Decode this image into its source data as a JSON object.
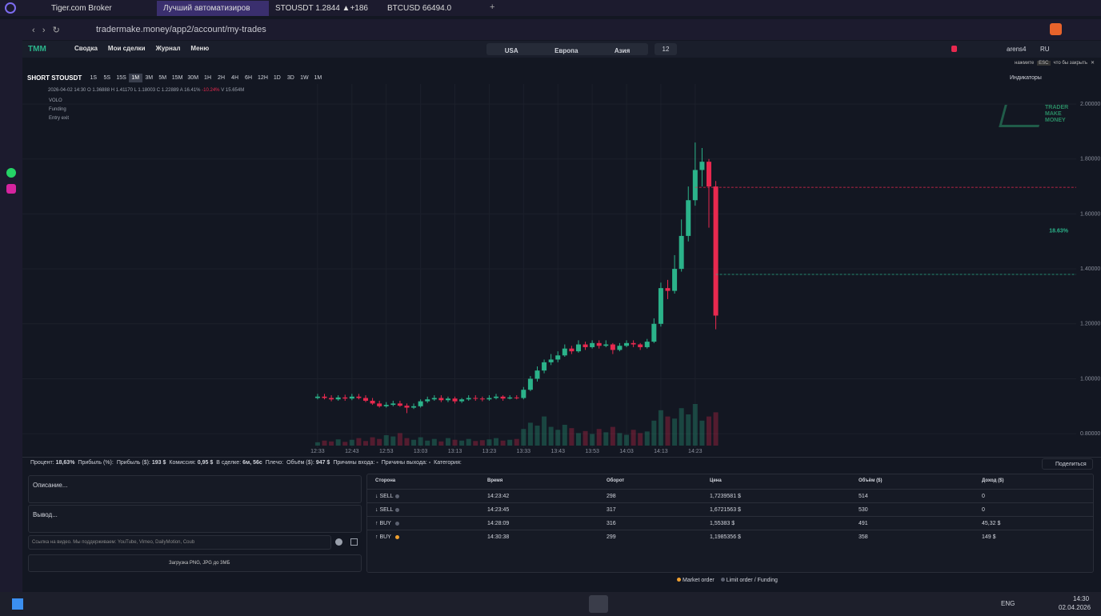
{
  "browser": {
    "tabs": [
      "Tiger.com Broker",
      "Лучший автоматизиров",
      "STOUSDT 1.2844 ▲+186",
      "BTCUSD 66494.0"
    ],
    "url": "tradermake.money/app2/account/my-trades"
  },
  "nav": {
    "items": [
      "Сводка",
      "Мои сделки",
      "Журнал",
      "Меню"
    ],
    "markets": [
      "USA",
      "Европа",
      "Азия"
    ],
    "badge": "12",
    "user": "arens4",
    "lang": "RU"
  },
  "toolbar": {
    "hint": "нажмите",
    "hint_key": "ESC",
    "hint_post": "что бы закрыть",
    "symbol": "SHORT STOUSDT",
    "timeframes": [
      "1S",
      "5S",
      "15S",
      "1M",
      "3M",
      "5M",
      "15M",
      "30M",
      "1H",
      "2H",
      "4H",
      "6H",
      "12H",
      "1D",
      "3D",
      "1W",
      "1M"
    ],
    "indicators": "Индикаторы"
  },
  "chart_data": {
    "type": "candlestick",
    "legend": "2026-04-02 14:30 O 1.36888 H 1.41170 L 1.18003 C 1.22889 A 16.41%",
    "change": "-10.24%",
    "volume_label": "V 15.654M",
    "studies": [
      "VOLO",
      "Funding",
      "Entry exit"
    ],
    "watermark": [
      "TRADER",
      "MAKE",
      "MONEY"
    ],
    "annotation": "18.63%",
    "up_color": "#2bb38a",
    "down_color": "#e8294f",
    "x": [
      "12:33",
      "12:35",
      "12:37",
      "12:39",
      "12:41",
      "12:43",
      "12:45",
      "12:47",
      "12:49",
      "12:51",
      "12:53",
      "12:55",
      "12:57",
      "12:59",
      "13:01",
      "13:03",
      "13:05",
      "13:07",
      "13:09",
      "13:11",
      "13:13",
      "13:15",
      "13:17",
      "13:19",
      "13:21",
      "13:23",
      "13:25",
      "13:27",
      "13:29",
      "13:31",
      "13:33",
      "13:35",
      "13:37",
      "13:39",
      "13:41",
      "13:43",
      "13:45",
      "13:47",
      "13:49",
      "13:51",
      "13:53",
      "13:55",
      "13:57",
      "13:59",
      "14:01",
      "14:03",
      "14:05",
      "14:07",
      "14:09",
      "14:11",
      "14:13",
      "14:15",
      "14:17",
      "14:19",
      "14:21",
      "14:23",
      "14:25",
      "14:27",
      "14:29"
    ],
    "open": [
      0.93,
      0.935,
      0.93,
      0.925,
      0.932,
      0.928,
      0.935,
      0.93,
      0.92,
      0.91,
      0.9,
      0.905,
      0.91,
      0.902,
      0.895,
      0.9,
      0.918,
      0.925,
      0.93,
      0.922,
      0.928,
      0.918,
      0.925,
      0.93,
      0.928,
      0.925,
      0.93,
      0.935,
      0.928,
      0.932,
      0.93,
      0.96,
      1.0,
      1.03,
      1.06,
      1.07,
      1.085,
      1.11,
      1.1,
      1.125,
      1.115,
      1.13,
      1.12,
      1.125,
      1.105,
      1.12,
      1.13,
      1.125,
      1.115,
      1.135,
      1.2,
      1.33,
      1.32,
      1.4,
      1.52,
      1.65,
      1.76,
      1.79,
      1.7
    ],
    "high": [
      0.945,
      0.945,
      0.94,
      0.94,
      0.942,
      0.945,
      0.945,
      0.94,
      0.93,
      0.92,
      0.915,
      0.92,
      0.92,
      0.91,
      0.91,
      0.925,
      0.935,
      0.94,
      0.94,
      0.935,
      0.935,
      0.93,
      0.94,
      0.94,
      0.935,
      0.94,
      0.945,
      0.94,
      0.94,
      0.94,
      0.97,
      1.01,
      1.045,
      1.07,
      1.09,
      1.1,
      1.125,
      1.12,
      1.14,
      1.135,
      1.14,
      1.14,
      1.14,
      1.13,
      1.13,
      1.14,
      1.14,
      1.13,
      1.145,
      1.22,
      1.35,
      1.36,
      1.45,
      1.58,
      1.7,
      1.86,
      1.84,
      1.8,
      1.72
    ],
    "low": [
      0.925,
      0.925,
      0.918,
      0.92,
      0.92,
      0.922,
      0.925,
      0.915,
      0.905,
      0.895,
      0.895,
      0.9,
      0.898,
      0.875,
      0.89,
      0.895,
      0.912,
      0.92,
      0.915,
      0.915,
      0.91,
      0.912,
      0.92,
      0.92,
      0.918,
      0.92,
      0.925,
      0.92,
      0.925,
      0.925,
      0.925,
      0.955,
      0.99,
      1.02,
      1.05,
      1.06,
      1.08,
      1.09,
      1.095,
      1.105,
      1.11,
      1.11,
      1.115,
      1.09,
      1.1,
      1.115,
      1.115,
      1.105,
      1.11,
      1.13,
      1.19,
      1.29,
      1.31,
      1.39,
      1.5,
      1.63,
      1.7,
      1.55,
      1.18
    ],
    "close": [
      0.935,
      0.93,
      0.925,
      0.932,
      0.928,
      0.935,
      0.93,
      0.92,
      0.91,
      0.9,
      0.905,
      0.91,
      0.902,
      0.895,
      0.9,
      0.918,
      0.925,
      0.93,
      0.922,
      0.928,
      0.918,
      0.925,
      0.93,
      0.928,
      0.925,
      0.93,
      0.935,
      0.928,
      0.932,
      0.93,
      0.96,
      1.0,
      1.03,
      1.06,
      1.07,
      1.085,
      1.11,
      1.1,
      1.125,
      1.115,
      1.13,
      1.12,
      1.125,
      1.105,
      1.12,
      1.13,
      1.125,
      1.115,
      1.135,
      1.2,
      1.33,
      1.32,
      1.4,
      1.52,
      1.65,
      1.76,
      1.79,
      1.7,
      1.23
    ],
    "volume": [
      8,
      12,
      10,
      15,
      9,
      14,
      18,
      11,
      20,
      16,
      25,
      22,
      30,
      18,
      14,
      20,
      12,
      16,
      10,
      18,
      14,
      12,
      16,
      11,
      13,
      15,
      18,
      12,
      14,
      16,
      40,
      55,
      48,
      70,
      45,
      38,
      50,
      42,
      30,
      35,
      28,
      40,
      32,
      45,
      30,
      26,
      38,
      30,
      34,
      60,
      85,
      70,
      65,
      90,
      75,
      100,
      60,
      70,
      80
    ],
    "xlim": [
      "11:07",
      "16:14"
    ],
    "xticks": [
      "12:33",
      "12:43",
      "12:53",
      "13:03",
      "13:13",
      "13:23",
      "13:33",
      "13:43",
      "13:53",
      "14:03",
      "14:13",
      "14:23"
    ],
    "ylim": [
      0.748,
      2.073
    ],
    "yticks": [
      {
        "value": 0.8,
        "label": "0.80000"
      },
      {
        "value": 1.0,
        "label": "1.00000"
      },
      {
        "value": 1.2,
        "label": "1.20000"
      },
      {
        "value": 1.4,
        "label": "1.40000"
      },
      {
        "value": 1.6,
        "label": "1.60000"
      },
      {
        "value": 1.8,
        "label": "1.80000"
      },
      {
        "value": 2.0,
        "label": "2.00000"
      }
    ],
    "levels": [
      {
        "value": 1.697,
        "color": "#e8294f",
        "from": "14:23"
      },
      {
        "value": 1.38,
        "color": "#2bb38a",
        "from": "14:29"
      }
    ],
    "grid": true
  },
  "stats": [
    {
      "label": "Процент:",
      "value": "18,63%"
    },
    {
      "label": "Прибыль (%):",
      "value": ""
    },
    {
      "label": "Прибыль ($):",
      "value": "193 $"
    },
    {
      "label": "Комиссия:",
      "value": "0,95 $"
    },
    {
      "label": "В сделке:",
      "value": "6м, 56с"
    },
    {
      "label": "Плечо:",
      "value": ""
    },
    {
      "label": "Объём ($):",
      "value": "947 $"
    },
    {
      "label": "Причины входа:",
      "value": "-"
    },
    {
      "label": "Причины выхода:",
      "value": "-"
    },
    {
      "label": "Категория:",
      "value": ""
    }
  ],
  "share": "Поделиться",
  "notes": {
    "description": "Описание...",
    "conclusion": "Вывод...",
    "video_placeholder": "Ссылка на видео. Мы поддерживаем: YouTube, Vimeo, DailyMotion, Coub",
    "upload": "Загрузка PNG, JPG до 3МБ"
  },
  "trades": {
    "columns": [
      "Сторона",
      "Время",
      "Оборот",
      "Цена",
      "Объём ($)",
      "Доход ($)"
    ],
    "rows": [
      [
        "↓ SELL",
        "14:23:42",
        "298",
        "1,7239581 $",
        "514",
        "0"
      ],
      [
        "↓ SELL",
        "14:23:45",
        "317",
        "1,6721563 $",
        "530",
        "0"
      ],
      [
        "↑ BUY",
        "14:28:09",
        "316",
        "1,55383 $",
        "491",
        "45,32 $"
      ],
      [
        "↑ BUY",
        "14:30:38",
        "299",
        "1,1985356 $",
        "358",
        "149 $"
      ]
    ],
    "dot_colors": [
      "#5c6170",
      "#5c6170",
      "#5c6170",
      "#f0a030"
    ],
    "legend": [
      {
        "label": "Market order",
        "color": "#f0a030"
      },
      {
        "label": "Limit order / Funding",
        "color": "#5c6170"
      }
    ]
  },
  "taskbar": {
    "lang": "ENG",
    "time": "14:30",
    "date": "02.04.2026"
  }
}
